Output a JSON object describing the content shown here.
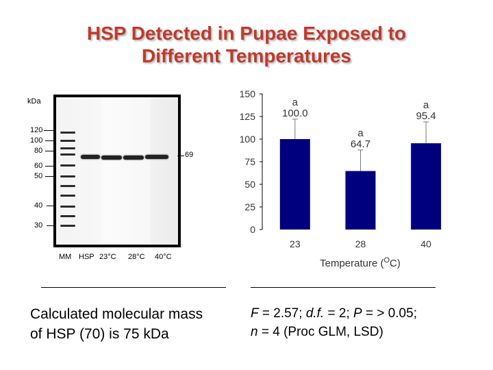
{
  "title": {
    "line1": "HSP Detected in Pupae Exposed to",
    "line2": "Different Temperatures"
  },
  "blot": {
    "unit_label": "kDa",
    "marker_labels": [
      "120",
      "100",
      "80",
      "60",
      "50",
      "40",
      "30"
    ],
    "band_label": "69",
    "lane_labels": [
      "MM",
      "HSP",
      "23°C",
      "28°C",
      "40°C"
    ]
  },
  "chart_data": {
    "type": "bar",
    "categories": [
      "23",
      "28",
      "40"
    ],
    "values": [
      100.0,
      64.7,
      95.4
    ],
    "value_labels": [
      "100.0",
      "64.7",
      "95.4"
    ],
    "error_upper": [
      122,
      88,
      119
    ],
    "significance": [
      "a",
      "a",
      "a"
    ],
    "xlabel": "Temperature (OC)",
    "xlabel_parts": {
      "main": "Temperature (",
      "sup": "O",
      "end": "C)"
    },
    "ylabel": "",
    "ylim": [
      0,
      150
    ],
    "yticks": [
      "0",
      "25",
      "50",
      "75",
      "100",
      "125",
      "150"
    ],
    "bar_color": "#00007f",
    "grid": false
  },
  "notes": {
    "left": "Calculated molecular mass of HSP (70) is 75 kDa",
    "right_line1_parts": {
      "f": "F",
      "f_val": " = 2.57; ",
      "df": "d.f.",
      "df_val": " = 2; ",
      "p": "P",
      "p_val": " =  > 0.05;"
    },
    "right_line2_parts": {
      "n": "n",
      "n_val": " = 4 (Proc GLM, LSD)"
    }
  }
}
